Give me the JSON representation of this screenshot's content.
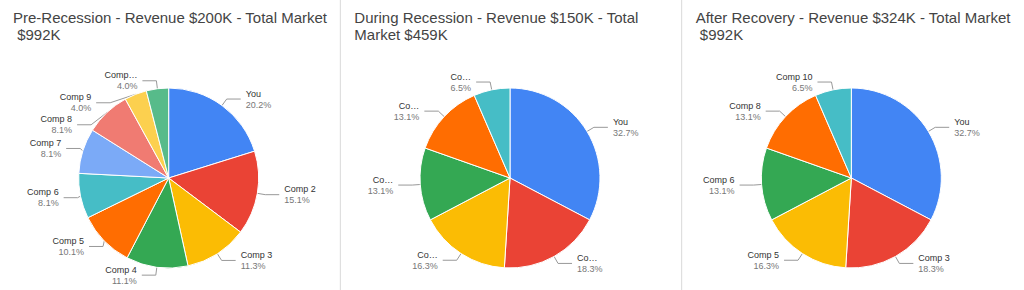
{
  "chart_data": [
    {
      "type": "pie",
      "title": "Pre-Recession - Revenue $200K - Total Market $992K",
      "categories": [
        "You",
        "Comp 2",
        "Comp 3",
        "Comp 4",
        "Comp 5",
        "Comp 6",
        "Comp 7",
        "Comp 8",
        "Comp 9",
        "Comp…"
      ],
      "values": [
        20.2,
        15.1,
        11.3,
        11.1,
        10.1,
        8.1,
        8.1,
        8.1,
        4.0,
        4.0
      ],
      "value_labels": [
        "20.2%",
        "15.1%",
        "11.3%",
        "11.1%",
        "10.1%",
        "8.1%",
        "8.1%",
        "8.1%",
        "4.0%",
        "4.0%"
      ],
      "colors": [
        "#4285f4",
        "#ea4335",
        "#fbbc04",
        "#34a853",
        "#ff6d01",
        "#46bdc6",
        "#7baaf7",
        "#f07b72",
        "#fcd04f",
        "#57bb8a"
      ],
      "data_labels": true
    },
    {
      "type": "pie",
      "title": "During Recession - Revenue $150K - Total Market $459K",
      "categories": [
        "You",
        "Co…",
        "Co…",
        "Co…",
        "Co…",
        "Co…"
      ],
      "values": [
        32.7,
        18.3,
        16.3,
        13.1,
        13.1,
        6.5
      ],
      "value_labels": [
        "32.7%",
        "18.3%",
        "16.3%",
        "13.1%",
        "13.1%",
        "6.5%"
      ],
      "colors": [
        "#4285f4",
        "#ea4335",
        "#fbbc04",
        "#34a853",
        "#ff6d01",
        "#46bdc6"
      ],
      "data_labels": true
    },
    {
      "type": "pie",
      "title": "After Recovery - Revenue $324K - Total Market $992K",
      "categories": [
        "You",
        "Comp 3",
        "Comp 5",
        "Comp 6",
        "Comp 8",
        "Comp 10"
      ],
      "values": [
        32.7,
        18.3,
        16.3,
        13.1,
        13.1,
        6.5
      ],
      "value_labels": [
        "32.7%",
        "18.3%",
        "16.3%",
        "13.1%",
        "13.1%",
        "6.5%"
      ],
      "colors": [
        "#4285f4",
        "#ea4335",
        "#fbbc04",
        "#34a853",
        "#ff6d01",
        "#46bdc6"
      ],
      "data_labels": true
    }
  ]
}
